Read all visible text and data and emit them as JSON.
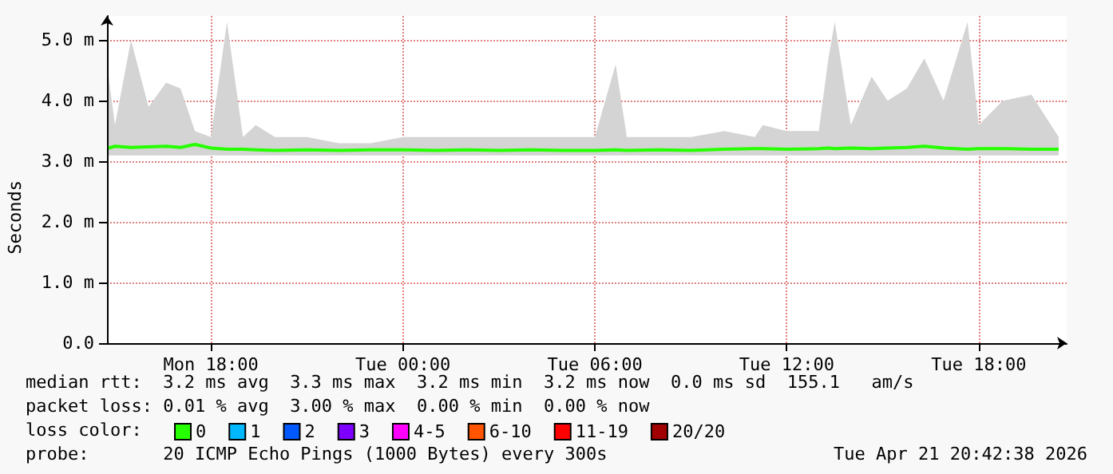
{
  "chart_data": {
    "type": "line",
    "ylabel": "Seconds",
    "x": [
      "2026-04-20T14:48",
      "2026-04-20T15:00",
      "2026-04-20T15:30",
      "2026-04-20T16:03",
      "2026-04-20T16:36",
      "2026-04-20T17:03",
      "2026-04-20T17:30",
      "2026-04-20T18:00",
      "2026-04-20T18:30",
      "2026-04-20T19:00",
      "2026-04-20T19:24",
      "2026-04-20T20:00",
      "2026-04-20T21:00",
      "2026-04-20T22:00",
      "2026-04-20T23:00",
      "2026-04-21T00:00",
      "2026-04-21T01:00",
      "2026-04-21T02:00",
      "2026-04-21T03:00",
      "2026-04-21T04:00",
      "2026-04-21T05:00",
      "2026-04-21T06:00",
      "2026-04-21T06:39",
      "2026-04-21T07:00",
      "2026-04-21T08:00",
      "2026-04-21T09:00",
      "2026-04-21T10:03",
      "2026-04-21T11:00",
      "2026-04-21T11:15",
      "2026-04-21T12:00",
      "2026-04-21T13:00",
      "2026-04-21T13:18",
      "2026-04-21T13:30",
      "2026-04-21T14:00",
      "2026-04-21T14:39",
      "2026-04-21T15:09",
      "2026-04-21T15:45",
      "2026-04-21T16:18",
      "2026-04-21T16:54",
      "2026-04-21T17:39",
      "2026-04-21T18:00",
      "2026-04-21T18:45",
      "2026-04-21T19:39",
      "2026-04-21T20:30"
    ],
    "series": [
      {
        "name": "0",
        "color": "#26ff00",
        "values": [
          3.22,
          3.25,
          3.23,
          3.24,
          3.25,
          3.23,
          3.28,
          3.22,
          3.2,
          3.2,
          3.19,
          3.18,
          3.19,
          3.18,
          3.19,
          3.19,
          3.18,
          3.19,
          3.18,
          3.19,
          3.18,
          3.18,
          3.19,
          3.18,
          3.19,
          3.18,
          3.2,
          3.21,
          3.21,
          3.2,
          3.21,
          3.22,
          3.21,
          3.22,
          3.21,
          3.22,
          3.23,
          3.25,
          3.22,
          3.2,
          3.21,
          3.21,
          3.2,
          3.2
        ],
        "lower": [
          3.1,
          3.1,
          3.1,
          3.1,
          3.1,
          3.1,
          3.1,
          3.1,
          3.1,
          3.1,
          3.1,
          3.1,
          3.1,
          3.1,
          3.1,
          3.1,
          3.1,
          3.1,
          3.1,
          3.1,
          3.1,
          3.1,
          3.1,
          3.1,
          3.1,
          3.1,
          3.1,
          3.1,
          3.1,
          3.1,
          3.1,
          3.1,
          3.1,
          3.1,
          3.1,
          3.1,
          3.1,
          3.1,
          3.1,
          3.1,
          3.1,
          3.1,
          3.1,
          3.1
        ],
        "upper": [
          4.4,
          3.6,
          5.0,
          3.9,
          4.3,
          4.2,
          3.5,
          3.4,
          5.3,
          3.4,
          3.6,
          3.4,
          3.4,
          3.3,
          3.3,
          3.4,
          3.4,
          3.4,
          3.4,
          3.4,
          3.4,
          3.4,
          4.6,
          3.4,
          3.4,
          3.4,
          3.5,
          3.4,
          3.6,
          3.5,
          3.5,
          4.7,
          5.3,
          3.6,
          4.4,
          4.0,
          4.2,
          4.7,
          4.0,
          5.3,
          3.6,
          4.0,
          4.1,
          3.4
        ]
      },
      {
        "name": "1",
        "color": "#00b8ff",
        "values": [
          null,
          null,
          null,
          null,
          null,
          null,
          null,
          null,
          null,
          null,
          null,
          null,
          null,
          null,
          null,
          null,
          null,
          null,
          null,
          null,
          null,
          null,
          null,
          null,
          null,
          null,
          null,
          null,
          null,
          null,
          null,
          null,
          null,
          null,
          null,
          null,
          null,
          null,
          null,
          null,
          null,
          null,
          null,
          null
        ]
      },
      {
        "name": "2",
        "color": "#0059ff",
        "values": [
          null,
          null,
          null,
          null,
          null,
          null,
          null,
          null,
          null,
          null,
          null,
          null,
          null,
          null,
          null,
          null,
          null,
          null,
          null,
          null,
          null,
          null,
          null,
          null,
          null,
          null,
          null,
          null,
          null,
          null,
          null,
          null,
          null,
          null,
          null,
          null,
          null,
          null,
          null,
          null,
          null,
          null,
          null,
          null
        ]
      },
      {
        "name": "3",
        "color": "#7e00ff",
        "values": [
          null,
          null,
          null,
          null,
          null,
          null,
          null,
          null,
          null,
          null,
          null,
          null,
          null,
          null,
          null,
          null,
          null,
          null,
          null,
          null,
          null,
          null,
          null,
          null,
          null,
          null,
          null,
          null,
          null,
          null,
          null,
          null,
          null,
          null,
          null,
          null,
          null,
          null,
          null,
          null,
          null,
          null,
          null,
          null
        ]
      },
      {
        "name": "4-5",
        "color": "#ff00ff",
        "values": [
          null,
          null,
          null,
          null,
          null,
          null,
          null,
          null,
          null,
          null,
          null,
          null,
          null,
          null,
          null,
          null,
          null,
          null,
          null,
          null,
          null,
          null,
          null,
          null,
          null,
          null,
          null,
          null,
          null,
          null,
          null,
          null,
          null,
          null,
          null,
          null,
          null,
          null,
          null,
          null,
          null,
          null,
          null,
          null
        ]
      },
      {
        "name": "6-10",
        "color": "#ff5500",
        "values": [
          null,
          null,
          null,
          null,
          null,
          null,
          null,
          null,
          null,
          null,
          null,
          null,
          null,
          null,
          null,
          null,
          null,
          null,
          null,
          null,
          null,
          null,
          null,
          null,
          null,
          null,
          null,
          null,
          null,
          null,
          null,
          null,
          null,
          null,
          null,
          null,
          null,
          null,
          null,
          null,
          null,
          null,
          null,
          null
        ]
      },
      {
        "name": "11-19",
        "color": "#ff0000",
        "values": [
          null,
          null,
          null,
          null,
          null,
          null,
          null,
          null,
          null,
          null,
          null,
          null,
          null,
          null,
          null,
          null,
          null,
          null,
          null,
          null,
          null,
          null,
          null,
          null,
          null,
          null,
          null,
          null,
          null,
          null,
          null,
          null,
          null,
          null,
          null,
          null,
          null,
          null,
          null,
          null,
          null,
          null,
          null,
          null
        ]
      },
      {
        "name": "20/20",
        "color": "#a10000",
        "values": [
          null,
          null,
          null,
          null,
          null,
          null,
          null,
          null,
          null,
          null,
          null,
          null,
          null,
          null,
          null,
          null,
          null,
          null,
          null,
          null,
          null,
          null,
          null,
          null,
          null,
          null,
          null,
          null,
          null,
          null,
          null,
          null,
          null,
          null,
          null,
          null,
          null,
          null,
          null,
          null,
          null,
          null,
          null,
          null
        ]
      }
    ],
    "legend": "bottom",
    "legend_title": "loss color:",
    "marker": "none",
    "line_style": "solid",
    "grid": true,
    "xlim": [
      "2026-04-20T14:45",
      "2026-04-21T20:45"
    ],
    "xticks": [
      {
        "value": "2026-04-20T18:00",
        "label": "Mon 18:00"
      },
      {
        "value": "2026-04-21T00:00",
        "label": "Tue 00:00"
      },
      {
        "value": "2026-04-21T06:00",
        "label": "Tue 06:00"
      },
      {
        "value": "2026-04-21T12:00",
        "label": "Tue 12:00"
      },
      {
        "value": "2026-04-21T18:00",
        "label": "Tue 18:00"
      }
    ],
    "ylim": [
      0,
      5.4
    ],
    "yticks": [
      {
        "value": 0,
        "label": "0.0"
      },
      {
        "value": 1,
        "label": "1.0 m"
      },
      {
        "value": 2,
        "label": "2.0 m"
      },
      {
        "value": 3,
        "label": "3.0 m"
      },
      {
        "value": 4,
        "label": "4.0 m"
      },
      {
        "value": 5,
        "label": "5.0 m"
      }
    ],
    "annotations": [
      "median rtt:  3.2 ms avg  3.3 ms max  3.2 ms min  3.2 ms now  0.0 ms sd  155.1   am/s",
      "packet loss: 0.01 % avg  3.00 % max  0.00 % min  0.00 % now",
      "probe:       20 ICMP Echo Pings (1000 Bytes) every 300s",
      "Tue Apr 21 20:42:38 2026"
    ]
  }
}
